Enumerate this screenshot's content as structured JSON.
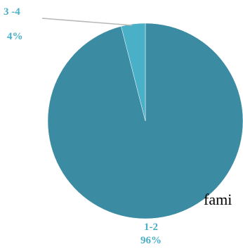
{
  "chart_data": {
    "type": "pie",
    "categories": [
      "1-2",
      "3 -4"
    ],
    "values": [
      96,
      4
    ],
    "value_labels": [
      "96%",
      "4%"
    ],
    "colors": [
      "#3b8ba3",
      "#4ab0c8"
    ],
    "label_color": "#4ab0c8",
    "leader_line_color": "#b8b8b8",
    "title": "",
    "legend": "none"
  },
  "overlay_text": "fami"
}
